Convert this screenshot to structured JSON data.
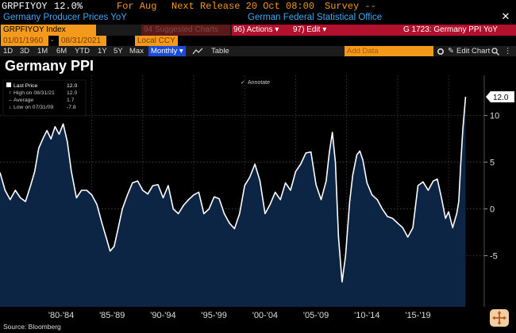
{
  "header": {
    "ticker": "GRPFIYOY",
    "last_value": "12.0%",
    "for_label": "For Aug",
    "next_release": "Next Release 20 Oct 08:00",
    "survey": "Survey --",
    "description": "Germany Producer Prices YoY",
    "source_agency": "German Federal Statistical Office"
  },
  "toolbar": {
    "index_label": "GRPFIYOY Index",
    "suggested": "94 Suggested Charts",
    "actions": "96) Actions ▾",
    "edit": "97) Edit ▾",
    "chart_id": "G 1723: Germany PPI YoY",
    "date_from": "01/01/1960",
    "date_sep": "-",
    "date_to": "08/31/2021",
    "currency": "Local CCY"
  },
  "periods": {
    "items": [
      "1D",
      "3D",
      "1M",
      "6M",
      "YTD",
      "1Y",
      "5Y",
      "Max"
    ],
    "frequency": "Monthly",
    "table": "Table",
    "add_data": "Add Data",
    "edit_chart": "Edit Chart"
  },
  "chart_title": "Germany PPI",
  "footer": {
    "source": "Source: Bloomberg"
  },
  "colors": {
    "accent_orange": "#f39a1d",
    "accent_red": "#b3102d",
    "link_blue": "#3ea8f5",
    "fill_navy": "#0c2544",
    "line_white": "#ffffff"
  },
  "chart_data": {
    "type": "area",
    "title": "Germany PPI",
    "ylabel": "",
    "ylim": [
      -8.6,
      14.3
    ],
    "yticks": [
      -5,
      0,
      5,
      10
    ],
    "xlim": [
      1976.0,
      2023.5
    ],
    "xtick_labels": [
      "'80-'84",
      "'85-'89",
      "'90-'94",
      "'95-'99",
      "'00-'04",
      "'05-'09",
      "'10-'14",
      "'15-'19"
    ],
    "xtick_centers": [
      1982,
      1987,
      1992,
      1997,
      2002,
      2007,
      2012,
      2017
    ],
    "legend": {
      "last_price_label": "Last Price",
      "last_price": "12.0",
      "high_label": "High on 08/31/21",
      "high": "12.0",
      "average_label": "Average",
      "average": "1.7",
      "low_label": "Low on 07/31/09",
      "low": "-7.8"
    },
    "annotate_label": "Annotate",
    "last_label": "12.0",
    "series": [
      {
        "name": "GRPFIYOY Index",
        "x": [
          1976.0,
          1976.5,
          1977.0,
          1977.5,
          1978.0,
          1978.5,
          1979.0,
          1979.4,
          1979.8,
          1980.2,
          1980.6,
          1981.0,
          1981.4,
          1981.8,
          1982.2,
          1982.6,
          1983.0,
          1983.5,
          1984.0,
          1984.5,
          1985.0,
          1985.5,
          1986.0,
          1986.4,
          1986.8,
          1987.2,
          1987.6,
          1988.0,
          1988.5,
          1989.0,
          1989.5,
          1990.0,
          1990.5,
          1991.0,
          1991.5,
          1992.0,
          1992.5,
          1993.0,
          1993.5,
          1994.0,
          1994.5,
          1995.0,
          1995.5,
          1996.0,
          1996.5,
          1997.0,
          1997.5,
          1998.0,
          1998.5,
          1999.0,
          1999.5,
          2000.0,
          2000.5,
          2001.0,
          2001.5,
          2002.0,
          2002.5,
          2003.0,
          2003.5,
          2004.0,
          2004.5,
          2005.0,
          2005.5,
          2006.0,
          2006.5,
          2007.0,
          2007.5,
          2008.0,
          2008.3,
          2008.6,
          2008.9,
          2009.2,
          2009.55,
          2009.9,
          2010.3,
          2010.6,
          2011.0,
          2011.3,
          2011.6,
          2012.0,
          2012.5,
          2013.0,
          2013.5,
          2014.0,
          2014.5,
          2015.0,
          2015.5,
          2016.0,
          2016.5,
          2017.0,
          2017.5,
          2018.0,
          2018.5,
          2018.9,
          2019.3,
          2019.7,
          2020.0,
          2020.4,
          2020.8,
          2021.0,
          2021.2,
          2021.4,
          2021.67
        ],
        "values": [
          3.9,
          2.0,
          1.0,
          2.0,
          1.2,
          0.8,
          2.5,
          4.0,
          6.5,
          7.5,
          8.4,
          7.5,
          8.8,
          8.0,
          9.1,
          7.2,
          4.0,
          1.2,
          2.0,
          2.0,
          1.5,
          0.5,
          -1.5,
          -3.0,
          -4.5,
          -4.0,
          -2.0,
          0.0,
          1.5,
          2.8,
          3.0,
          2.0,
          1.6,
          2.5,
          2.6,
          1.2,
          2.5,
          0.0,
          -0.5,
          0.4,
          1.0,
          1.5,
          1.8,
          -0.5,
          0.0,
          1.3,
          1.1,
          -0.5,
          -1.5,
          -2.1,
          -0.5,
          2.5,
          3.4,
          4.8,
          3.0,
          -0.5,
          0.5,
          1.8,
          1.0,
          2.8,
          2.0,
          4.0,
          4.8,
          6.0,
          6.1,
          2.6,
          1.0,
          3.0,
          6.0,
          8.2,
          5.0,
          -3.0,
          -7.8,
          -5.0,
          0.8,
          3.6,
          5.8,
          6.2,
          5.2,
          2.8,
          1.5,
          1.0,
          0.0,
          -0.8,
          -1.0,
          -1.5,
          -2.0,
          -3.0,
          -2.0,
          2.5,
          2.9,
          2.0,
          3.0,
          3.2,
          1.2,
          -1.0,
          -0.3,
          -2.0,
          -0.5,
          0.8,
          5.0,
          8.5,
          12.0
        ]
      }
    ]
  }
}
